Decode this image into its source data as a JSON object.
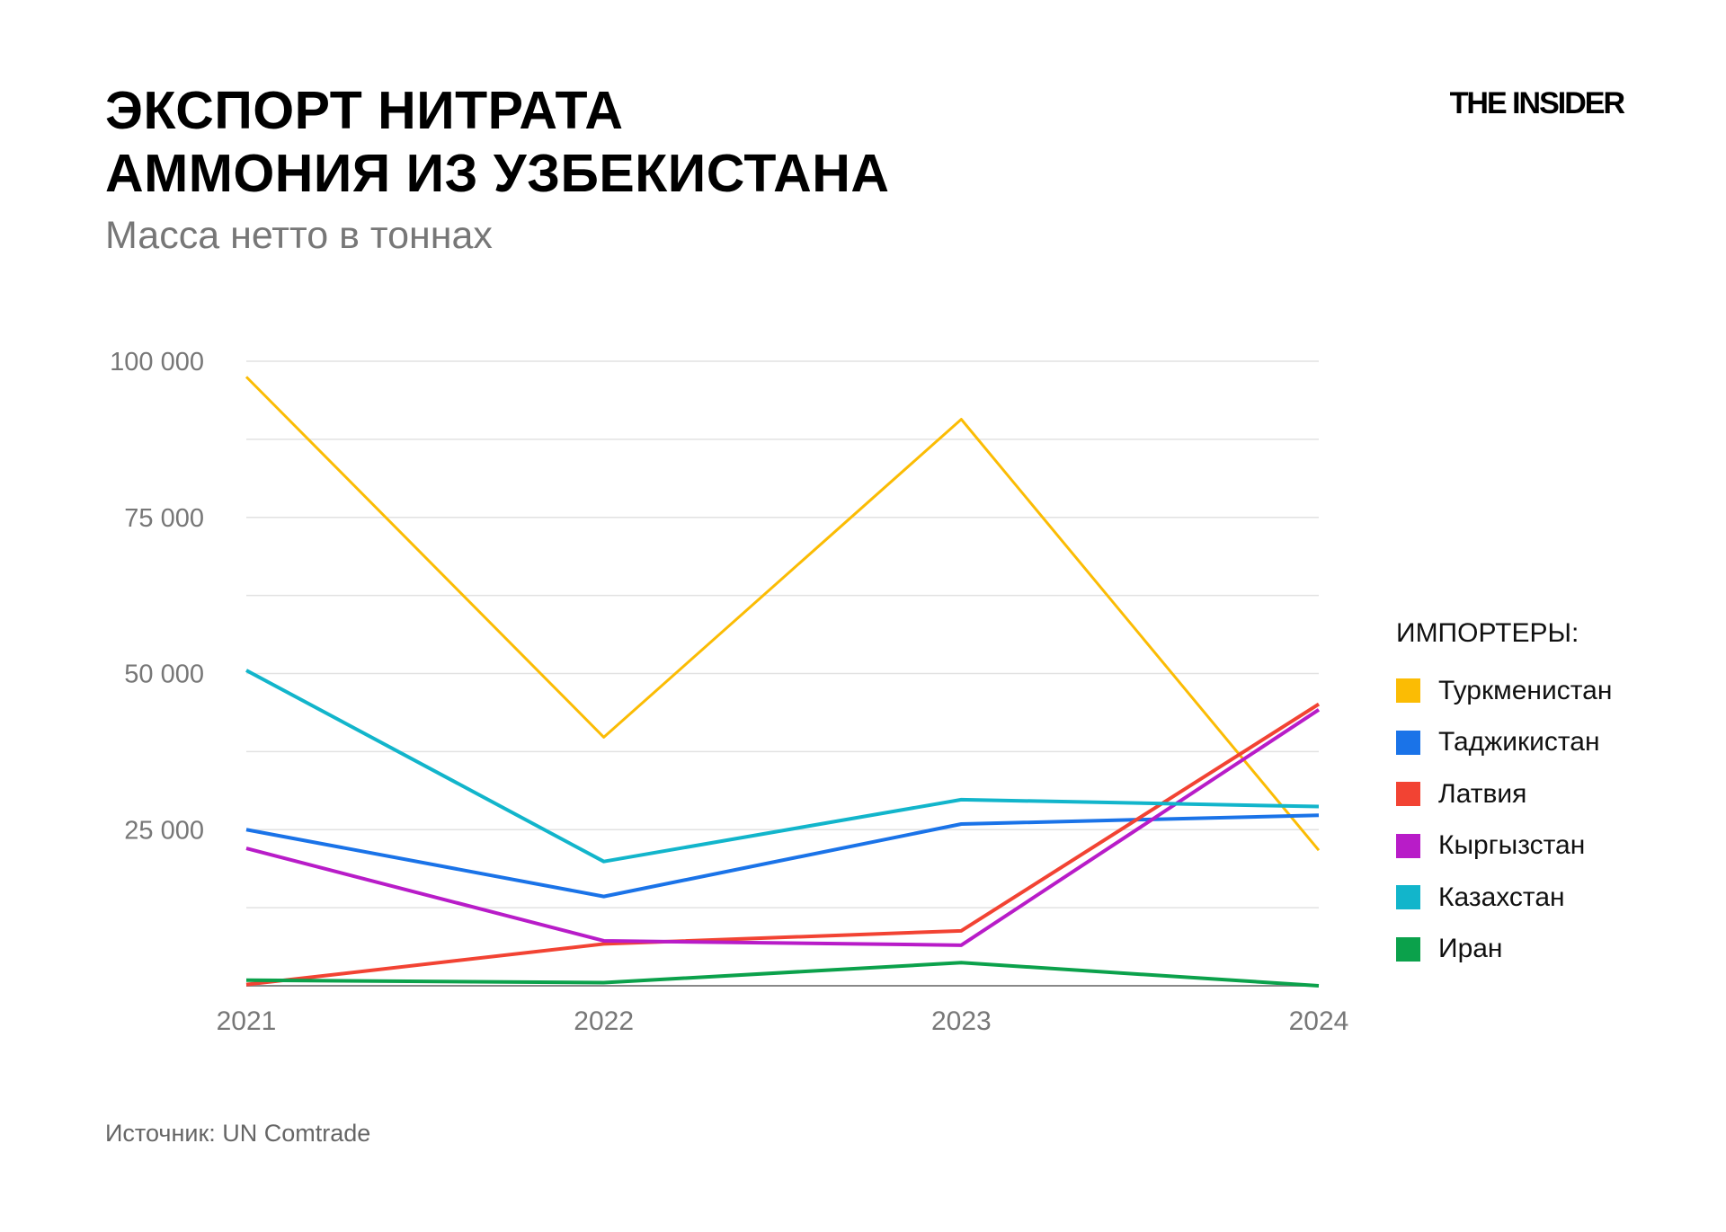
{
  "header": {
    "title_line1": "ЭКСПОРТ НИТРАТА",
    "title_line2": "АММОНИЯ ИЗ УЗБЕКИСТАНА",
    "subtitle": "Масса нетто в тоннах",
    "logo": "THE INSIDER"
  },
  "footer": {
    "source": "Источник: UN Comtrade"
  },
  "chart_data": {
    "type": "line",
    "title": "ЭКСПОРТ НИТРАТА АММОНИЯ ИЗ УЗБЕКИСТАНА",
    "subtitle": "Масса нетто в тоннах",
    "x": [
      "2021",
      "2022",
      "2023",
      "2024"
    ],
    "ylim": [
      0,
      100000
    ],
    "yticks": [
      0,
      12500,
      25000,
      37500,
      50000,
      62500,
      75000,
      87500,
      100000
    ],
    "ytick_labels": {
      "25000": "25 000",
      "50000": "50 000",
      "75000": "75 000",
      "100000": "100 000"
    },
    "grid": true,
    "legend_title": "ИМПОРТЕРЫ:",
    "legend_position": "right",
    "series": [
      {
        "name": "Туркменистан",
        "color": "#FBBC04",
        "values": [
          97500,
          39800,
          90700,
          21700
        ]
      },
      {
        "name": "Таджикистан",
        "color": "#1A73E8",
        "values": [
          25000,
          14300,
          25900,
          27300
        ]
      },
      {
        "name": "Латвия",
        "color": "#F24333",
        "values": [
          200,
          6700,
          8800,
          45100
        ]
      },
      {
        "name": "Кыргызстан",
        "color": "#B81CC8",
        "values": [
          22000,
          7200,
          6500,
          44200
        ]
      },
      {
        "name": "Казахстан",
        "color": "#12B5CB",
        "values": [
          50500,
          19900,
          29800,
          28700
        ]
      },
      {
        "name": "Иран",
        "color": "#0BA14B",
        "values": [
          900,
          500,
          3700,
          0
        ]
      }
    ]
  }
}
